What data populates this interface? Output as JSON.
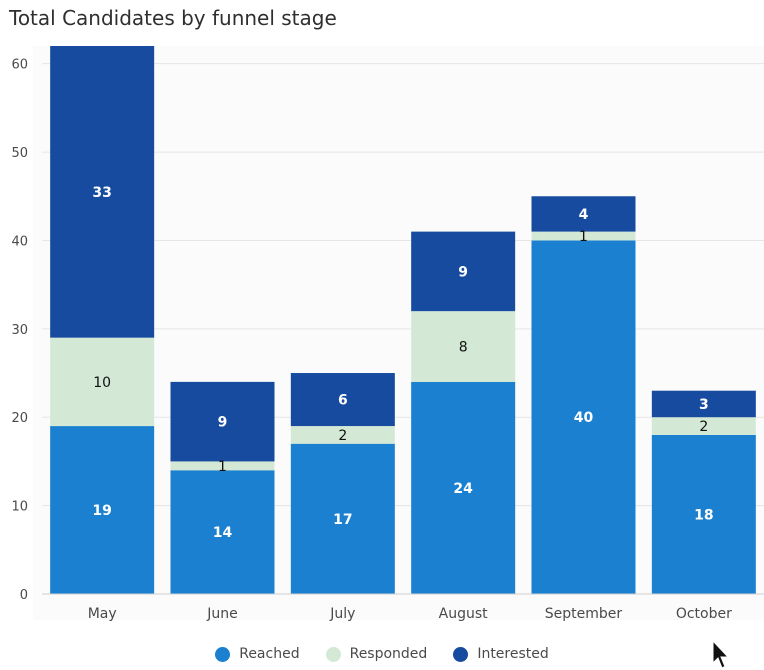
{
  "chart_data": {
    "type": "bar",
    "stacked": true,
    "title": "Total Candidates by funnel stage",
    "categories": [
      "May",
      "June",
      "July",
      "August",
      "September",
      "October"
    ],
    "series": [
      {
        "name": "Reached",
        "color": "#1b80d0",
        "values": [
          19,
          14,
          17,
          24,
          40,
          18
        ]
      },
      {
        "name": "Responded",
        "color": "#d3e9d5",
        "values": [
          10,
          1,
          2,
          8,
          1,
          2
        ]
      },
      {
        "name": "Interested",
        "color": "#174b9f",
        "values": [
          33,
          9,
          6,
          9,
          4,
          3
        ]
      }
    ],
    "y_ticks": [
      0,
      10,
      20,
      30,
      40,
      50,
      60
    ],
    "ylim": [
      0,
      62
    ],
    "grid": true,
    "legend_position": "bottom-center"
  }
}
